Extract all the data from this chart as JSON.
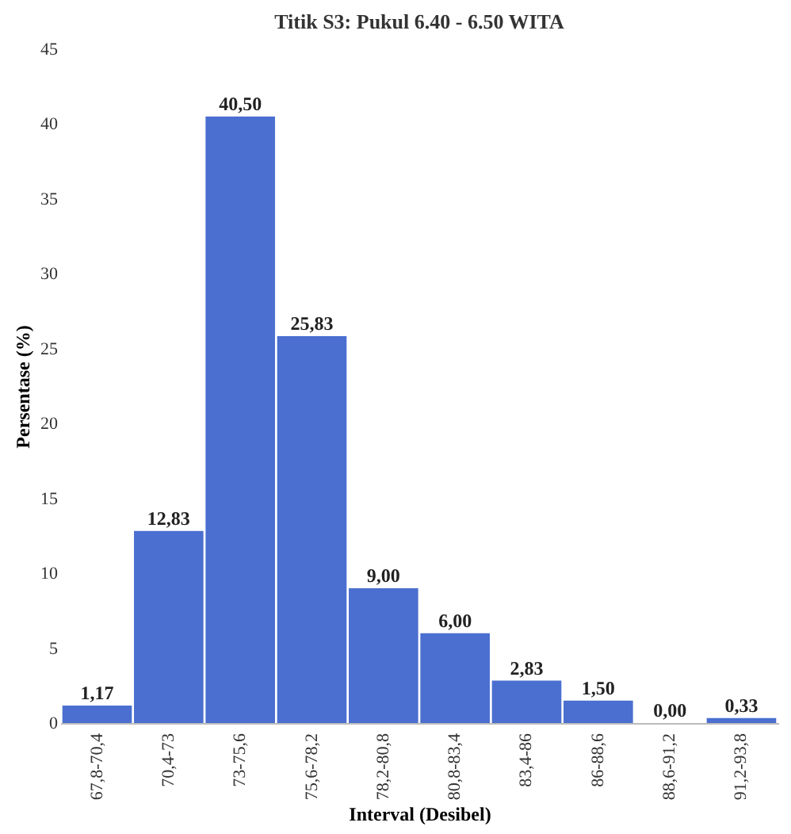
{
  "chart_data": {
    "type": "bar",
    "title": "Titik S3: Pukul 6.40 - 6.50 WITA",
    "xlabel": "Interval (Desibel)",
    "ylabel": "Persentase (%)",
    "categories": [
      "67,8-70,4",
      "70,4-73",
      "73-75,6",
      "75,6-78,2",
      "78,2-80,8",
      "80,8-83,4",
      "83,4-86",
      "86-88,6",
      "88,6-91,2",
      "91,2-93,8"
    ],
    "values": [
      1.17,
      12.83,
      40.5,
      25.83,
      9.0,
      6.0,
      2.83,
      1.5,
      0.0,
      0.33
    ],
    "value_labels": [
      "1,17",
      "12,83",
      "40,50",
      "25,83",
      "9,00",
      "6,00",
      "2,83",
      "1,50",
      "0,00",
      "0,33"
    ],
    "color": "#4a6fd0",
    "ylim": [
      0,
      45
    ],
    "yticks": [
      0,
      5,
      10,
      15,
      20,
      25,
      30,
      35,
      40,
      45
    ],
    "grid": false
  }
}
